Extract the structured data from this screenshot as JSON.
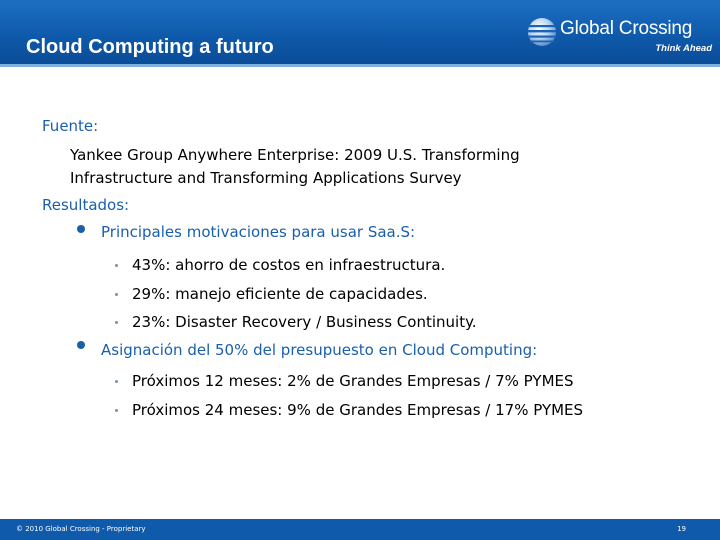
{
  "header": {
    "title": "Cloud Computing a futuro",
    "logo_name": "Global Crossing",
    "logo_tagline": "Think Ahead"
  },
  "content": {
    "source_label": "Fuente:",
    "source_lines": [
      "Yankee Group Anywhere Enterprise: 2009 U.S. Transforming",
      "Infrastructure and Transforming Applications Survey"
    ],
    "results_label": "Resultados:",
    "sections": [
      {
        "heading": "Principales motivaciones para usar Saa.S:",
        "items": [
          "43%: ahorro de costos en infraestructura.",
          "29%: manejo eficiente de capacidades.",
          "23%: Disaster Recovery / Business Continuity."
        ]
      },
      {
        "heading": "Asignación del 50% del presupuesto en Cloud Computing:",
        "items": [
          "Próximos 12 meses: 2% de Grandes Empresas / 7% PYMES",
          "Próximos 24 meses: 9% de Grandes Empresas / 17% PYMES"
        ]
      }
    ]
  },
  "footer": {
    "copyright": "© 2010 Global Crossing - Proprietary",
    "page_number": "19"
  },
  "colors": {
    "header_blue": "#0f5aab",
    "label_blue": "#1a5fad"
  }
}
